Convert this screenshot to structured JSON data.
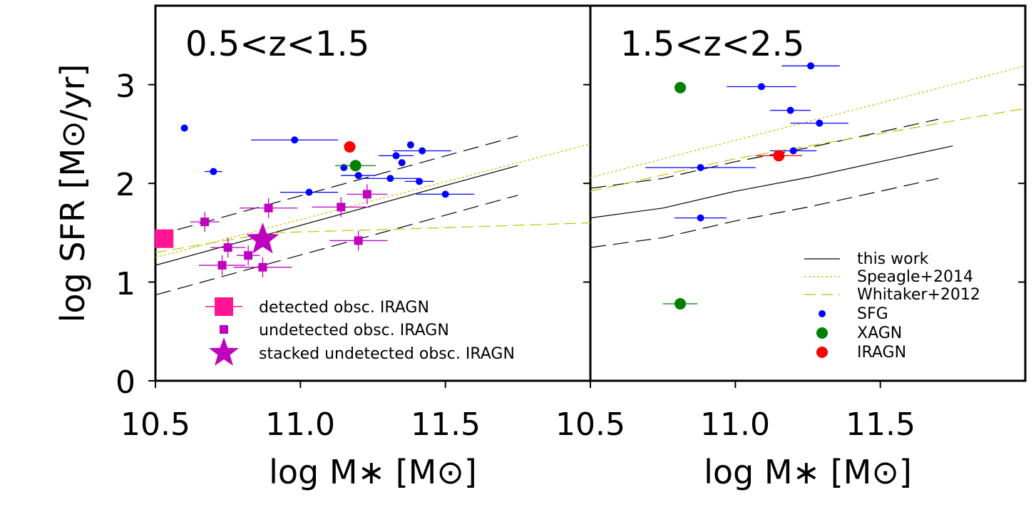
{
  "chart_data": {
    "type": "scatter",
    "ylabel": "log SFR [M⊙/yr]",
    "xlabel": "log M∗ [M⊙]",
    "ylim": [
      0,
      3.8
    ],
    "yticks": [
      "0",
      "1",
      "2",
      "3"
    ],
    "ytick_values": [
      0,
      1,
      2,
      3
    ],
    "panels": [
      {
        "title": "0.5<z<1.5",
        "xlabel": "log M∗ [M⊙]",
        "xlim": [
          10.5,
          12.0
        ],
        "xticks": [
          "10.5",
          "11.0",
          "11.5"
        ],
        "xtick_values": [
          10.5,
          11.0,
          11.5
        ],
        "lines": [
          {
            "name": "this work",
            "style": "solid",
            "x": [
              10.5,
              11.75
            ],
            "y": [
              1.17,
              2.18
            ]
          },
          {
            "name": "this work upper",
            "style": "dashed",
            "x": [
              10.5,
              11.75
            ],
            "y": [
              1.47,
              2.48
            ]
          },
          {
            "name": "this work lower",
            "style": "dashed",
            "x": [
              10.5,
              11.75
            ],
            "y": [
              0.87,
              1.88
            ]
          },
          {
            "name": "Speagle+2014",
            "style": "dotted",
            "x": [
              10.5,
              12.0
            ],
            "y": [
              1.25,
              2.4
            ]
          },
          {
            "name": "Whitaker+2012",
            "style": "dashdot",
            "x": [
              10.5,
              10.9,
              11.5,
              12.0
            ],
            "y": [
              1.3,
              1.5,
              1.55,
              1.6
            ]
          }
        ],
        "SFG": [
          {
            "x": 10.6,
            "y": 2.56
          },
          {
            "x": 10.7,
            "y": 2.12,
            "xerr": 0.03
          },
          {
            "x": 10.98,
            "y": 2.44,
            "xerr": 0.15
          },
          {
            "x": 11.15,
            "y": 2.16
          },
          {
            "x": 11.2,
            "y": 2.08,
            "xerr": 0.06
          },
          {
            "x": 11.03,
            "y": 1.91,
            "xerr": 0.1
          },
          {
            "x": 11.33,
            "y": 2.28,
            "xerr": 0.06
          },
          {
            "x": 11.35,
            "y": 2.21
          },
          {
            "x": 11.38,
            "y": 2.39
          },
          {
            "x": 11.42,
            "y": 2.33,
            "xerr": 0.1
          },
          {
            "x": 11.31,
            "y": 2.05,
            "xerr": 0.1
          },
          {
            "x": 11.41,
            "y": 2.02,
            "xerr": 0.05
          },
          {
            "x": 11.5,
            "y": 1.89,
            "xerr": 0.1
          }
        ],
        "XAGN": [
          {
            "x": 11.19,
            "y": 2.18,
            "xerr": 0.07
          }
        ],
        "IRAGN": [
          {
            "x": 11.17,
            "y": 2.37,
            "xerr": 0.02
          }
        ],
        "detected_obsc_IRAGN": [
          {
            "x": 10.53,
            "y": 1.44
          }
        ],
        "undetected_obsc_IRAGN": [
          {
            "x": 10.67,
            "y": 1.61,
            "xerr": 0.05
          },
          {
            "x": 10.75,
            "y": 1.35,
            "xerr": 0.06
          },
          {
            "x": 10.73,
            "y": 1.17,
            "xerr": 0.08
          },
          {
            "x": 10.82,
            "y": 1.27,
            "xerr": 0.04
          },
          {
            "x": 10.87,
            "y": 1.15,
            "xerr": 0.1
          },
          {
            "x": 10.89,
            "y": 1.75,
            "xerr": 0.1
          },
          {
            "x": 11.14,
            "y": 1.76,
            "xerr": 0.1
          },
          {
            "x": 11.2,
            "y": 1.42,
            "xerr": 0.1
          },
          {
            "x": 11.23,
            "y": 1.89,
            "xerr": 0.07
          }
        ],
        "stacked_undetected_obsc_IRAGN": [
          {
            "x": 10.87,
            "y": 1.43
          }
        ],
        "legend": [
          "detected obsc. IRAGN",
          "undetected obsc. IRAGN",
          "stacked undetected obsc. IRAGN"
        ],
        "legend_position": "lower-left"
      },
      {
        "title": "1.5<z<2.5",
        "xlabel": "log M∗ [M⊙]",
        "xlim": [
          10.5,
          12.0
        ],
        "xticks": [
          "10.5",
          "11.0",
          "11.5"
        ],
        "xtick_values": [
          10.5,
          11.0,
          11.5
        ],
        "lines": [
          {
            "name": "this work",
            "style": "solid",
            "x": [
              10.5,
              10.75,
              11.0,
              11.25,
              11.5,
              11.75
            ],
            "y": [
              1.65,
              1.75,
              1.92,
              2.06,
              2.22,
              2.38
            ]
          },
          {
            "name": "this work upper",
            "style": "dashed",
            "x": [
              10.5,
              10.75,
              11.0,
              11.25,
              11.5,
              11.7
            ],
            "y": [
              1.95,
              2.05,
              2.22,
              2.36,
              2.52,
              2.65
            ]
          },
          {
            "name": "this work lower",
            "style": "dashed",
            "x": [
              10.5,
              10.75,
              11.0,
              11.25,
              11.5,
              11.7
            ],
            "y": [
              1.35,
              1.45,
              1.62,
              1.76,
              1.92,
              2.05
            ]
          },
          {
            "name": "Speagle+2014",
            "style": "dotted",
            "x": [
              10.5,
              12.0
            ],
            "y": [
              2.06,
              3.19
            ]
          },
          {
            "name": "Whitaker+2012",
            "style": "dashdot",
            "x": [
              10.5,
              11.0,
              12.0
            ],
            "y": [
              1.92,
              2.25,
              2.76
            ]
          }
        ],
        "SFG": [
          {
            "x": 11.26,
            "y": 3.19,
            "xerr": 0.1
          },
          {
            "x": 11.09,
            "y": 2.98,
            "xerr": 0.12
          },
          {
            "x": 11.19,
            "y": 2.74,
            "xerr": 0.07
          },
          {
            "x": 11.29,
            "y": 2.61,
            "xerr": 0.1
          },
          {
            "x": 11.2,
            "y": 2.33,
            "xerr": 0.08
          },
          {
            "x": 10.88,
            "y": 2.16,
            "xerr": 0.19
          },
          {
            "x": 10.88,
            "y": 1.65,
            "xerr": 0.09
          }
        ],
        "XAGN": [
          {
            "x": 10.81,
            "y": 2.97
          },
          {
            "x": 10.81,
            "y": 0.78,
            "xerr": 0.06
          }
        ],
        "IRAGN": [
          {
            "x": 11.15,
            "y": 2.28,
            "xerr": 0.08
          }
        ],
        "legend": [
          "this work",
          "Speagle+2014",
          "Whitaker+2012",
          "SFG",
          "XAGN",
          "IRAGN"
        ],
        "legend_position": "lower-right"
      }
    ]
  },
  "colors": {
    "SFG": "#0000ff",
    "XAGN": "#008000",
    "IRAGN": "#ff0000",
    "detected": "#ff1493",
    "undetected": "#bf00bf",
    "speagle": "#bfbf00",
    "whitaker": "#bfbf00",
    "thiswork": "#000000"
  }
}
